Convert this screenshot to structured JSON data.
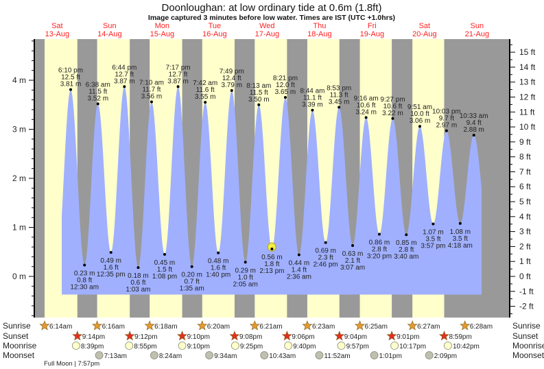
{
  "chart_data": {
    "type": "area",
    "title": "Doonloughan: at low  ordinary tide at 0.6m (1.8ft)",
    "subtitle": "Image captured 3 minutes before low water. Times are IST (UTC +1.0hrs)",
    "days": [
      {
        "dow": "Sat",
        "date": "13-Aug"
      },
      {
        "dow": "Sun",
        "date": "14-Aug"
      },
      {
        "dow": "Mon",
        "date": "15-Aug"
      },
      {
        "dow": "Tue",
        "date": "16-Aug"
      },
      {
        "dow": "Wed",
        "date": "17-Aug"
      },
      {
        "dow": "Thu",
        "date": "18-Aug"
      },
      {
        "dow": "Fri",
        "date": "19-Aug"
      },
      {
        "dow": "Sat",
        "date": "20-Aug"
      },
      {
        "dow": "Sun",
        "date": "21-Aug"
      }
    ],
    "yaxis_left": {
      "unit": "m",
      "ticks": [
        "0 m",
        "1 m",
        "2 m",
        "3 m",
        "4 m"
      ],
      "values": [
        0,
        1,
        2,
        3,
        4
      ]
    },
    "yaxis_right": {
      "unit": "ft",
      "ticks": [
        "-2 ft",
        "-1 ft",
        "0 ft",
        "1 ft",
        "2 ft",
        "3 ft",
        "4 ft",
        "5 ft",
        "6 ft",
        "7 ft",
        "8 ft",
        "9 ft",
        "10 ft",
        "11 ft",
        "12 ft",
        "13 ft",
        "14 ft",
        "15 ft"
      ],
      "values": [
        -2,
        -1,
        0,
        1,
        2,
        3,
        4,
        5,
        6,
        7,
        8,
        9,
        10,
        11,
        12,
        13,
        14,
        15
      ]
    },
    "ylim_m": [
      -0.8,
      4.8
    ],
    "tides": [
      {
        "day": 0,
        "time": "6:10 pm",
        "h": 18.167,
        "m": "3.81 m",
        "ft": "12.5 ft",
        "v": 3.81,
        "type": "high"
      },
      {
        "day": 1,
        "time": "12:30 am",
        "h": 0.5,
        "m": "0.23 m",
        "ft": "0.8 ft",
        "v": 0.23,
        "type": "low"
      },
      {
        "day": 1,
        "time": "6:38 am",
        "h": 6.633,
        "m": "3.52 m",
        "ft": "11.5 ft",
        "v": 3.52,
        "type": "high"
      },
      {
        "day": 1,
        "time": "12:35 pm",
        "h": 12.583,
        "m": "0.49 m",
        "ft": "1.6 ft",
        "v": 0.49,
        "type": "low"
      },
      {
        "day": 1,
        "time": "6:44 pm",
        "h": 18.733,
        "m": "3.87 m",
        "ft": "12.7 ft",
        "v": 3.87,
        "type": "high"
      },
      {
        "day": 2,
        "time": "1:03 am",
        "h": 1.05,
        "m": "0.18 m",
        "ft": "0.6 ft",
        "v": 0.18,
        "type": "low"
      },
      {
        "day": 2,
        "time": "7:10 am",
        "h": 7.167,
        "m": "3.56 m",
        "ft": "11.7 ft",
        "v": 3.56,
        "type": "high"
      },
      {
        "day": 2,
        "time": "1:08 pm",
        "h": 13.133,
        "m": "0.45 m",
        "ft": "1.5 ft",
        "v": 0.45,
        "type": "low"
      },
      {
        "day": 2,
        "time": "7:17 pm",
        "h": 19.283,
        "m": "3.87 m",
        "ft": "12.7 ft",
        "v": 3.87,
        "type": "high"
      },
      {
        "day": 3,
        "time": "1:35 am",
        "h": 1.583,
        "m": "0.20 m",
        "ft": "0.7 ft",
        "v": 0.2,
        "type": "low"
      },
      {
        "day": 3,
        "time": "7:42 am",
        "h": 7.7,
        "m": "3.55 m",
        "ft": "11.6 ft",
        "v": 3.55,
        "type": "high"
      },
      {
        "day": 3,
        "time": "1:40 pm",
        "h": 13.667,
        "m": "0.48 m",
        "ft": "1.6 ft",
        "v": 0.48,
        "type": "low"
      },
      {
        "day": 3,
        "time": "7:49 pm",
        "h": 19.817,
        "m": "3.79 m",
        "ft": "12.4 ft",
        "v": 3.79,
        "type": "high"
      },
      {
        "day": 4,
        "time": "2:05 am",
        "h": 2.083,
        "m": "0.29 m",
        "ft": "1.0 ft",
        "v": 0.29,
        "type": "low"
      },
      {
        "day": 4,
        "time": "8:13 am",
        "h": 8.217,
        "m": "3.50 m",
        "ft": "11.5 ft",
        "v": 3.5,
        "type": "high"
      },
      {
        "day": 4,
        "time": "2:13 pm",
        "h": 14.217,
        "m": "0.56 m",
        "ft": "1.8 ft",
        "v": 0.56,
        "type": "low"
      },
      {
        "day": 4,
        "time": "8:21 pm",
        "h": 20.35,
        "m": "3.65 m",
        "ft": "12.0 ft",
        "v": 3.65,
        "type": "high"
      },
      {
        "day": 5,
        "time": "2:36 am",
        "h": 2.6,
        "m": "0.44 m",
        "ft": "1.4 ft",
        "v": 0.44,
        "type": "low"
      },
      {
        "day": 5,
        "time": "8:44 am",
        "h": 8.733,
        "m": "3.39 m",
        "ft": "11.1 ft",
        "v": 3.39,
        "type": "high"
      },
      {
        "day": 5,
        "time": "2:46 pm",
        "h": 14.767,
        "m": "0.69 m",
        "ft": "2.3 ft",
        "v": 0.69,
        "type": "low"
      },
      {
        "day": 5,
        "time": "8:53 pm",
        "h": 20.883,
        "m": "3.45 m",
        "ft": "11.3 ft",
        "v": 3.45,
        "type": "high"
      },
      {
        "day": 6,
        "time": "3:07 am",
        "h": 3.117,
        "m": "0.63 m",
        "ft": "2.1 ft",
        "v": 0.63,
        "type": "low"
      },
      {
        "day": 6,
        "time": "9:16 am",
        "h": 9.267,
        "m": "3.24 m",
        "ft": "10.6 ft",
        "v": 3.24,
        "type": "high"
      },
      {
        "day": 6,
        "time": "3:20 pm",
        "h": 15.333,
        "m": "0.86 m",
        "ft": "2.8 ft",
        "v": 0.86,
        "type": "low"
      },
      {
        "day": 6,
        "time": "9:27 pm",
        "h": 21.45,
        "m": "3.22 m",
        "ft": "10.6 ft",
        "v": 3.22,
        "type": "high"
      },
      {
        "day": 7,
        "time": "3:40 am",
        "h": 3.667,
        "m": "0.85 m",
        "ft": "2.8 ft",
        "v": 0.85,
        "type": "low"
      },
      {
        "day": 7,
        "time": "9:51 am",
        "h": 9.85,
        "m": "3.06 m",
        "ft": "10.0 ft",
        "v": 3.06,
        "type": "high"
      },
      {
        "day": 7,
        "time": "3:57 pm",
        "h": 15.95,
        "m": "1.07 m",
        "ft": "3.5 ft",
        "v": 1.07,
        "type": "low"
      },
      {
        "day": 7,
        "time": "10:03 pm",
        "h": 22.05,
        "m": "2.97 m",
        "ft": "9.7 ft",
        "v": 2.97,
        "type": "high"
      },
      {
        "day": 8,
        "time": "4:18 am",
        "h": 4.3,
        "m": "1.08 m",
        "ft": "3.5 ft",
        "v": 1.08,
        "type": "low"
      },
      {
        "day": 8,
        "time": "10:33 am",
        "h": 10.55,
        "m": "2.88 m",
        "ft": "9.4 ft",
        "v": 2.88,
        "type": "high"
      }
    ],
    "current": {
      "day": 4,
      "h": 14.167,
      "v": 0.6
    },
    "sunrise": {
      "label": "Sunrise",
      "items": [
        {
          "day": 0,
          "h": 6.233,
          "t": "6:14am"
        },
        {
          "day": 1,
          "h": 6.267,
          "t": "6:16am"
        },
        {
          "day": 2,
          "h": 6.3,
          "t": "6:18am"
        },
        {
          "day": 3,
          "h": 6.333,
          "t": "6:20am"
        },
        {
          "day": 4,
          "h": 6.35,
          "t": "6:21am"
        },
        {
          "day": 5,
          "h": 6.383,
          "t": "6:23am"
        },
        {
          "day": 6,
          "h": 6.417,
          "t": "6:25am"
        },
        {
          "day": 7,
          "h": 6.45,
          "t": "6:27am"
        },
        {
          "day": 8,
          "h": 6.467,
          "t": "6:28am"
        }
      ]
    },
    "sunset": {
      "label": "Sunset",
      "items": [
        {
          "day": 0,
          "h": 21.233,
          "t": "9:14pm"
        },
        {
          "day": 1,
          "h": 21.2,
          "t": "9:12pm"
        },
        {
          "day": 2,
          "h": 21.167,
          "t": "9:10pm"
        },
        {
          "day": 3,
          "h": 21.133,
          "t": "9:08pm"
        },
        {
          "day": 4,
          "h": 21.1,
          "t": "9:06pm"
        },
        {
          "day": 5,
          "h": 21.067,
          "t": "9:04pm"
        },
        {
          "day": 6,
          "h": 21.017,
          "t": "9:01pm"
        },
        {
          "day": 7,
          "h": 20.983,
          "t": "8:59pm"
        }
      ]
    },
    "moonrise": {
      "label": "Moonrise",
      "items": [
        {
          "day": 0,
          "h": 20.65,
          "t": "8:39pm"
        },
        {
          "day": 1,
          "h": 20.917,
          "t": "8:55pm"
        },
        {
          "day": 2,
          "h": 21.167,
          "t": "9:10pm"
        },
        {
          "day": 3,
          "h": 21.417,
          "t": "9:25pm"
        },
        {
          "day": 4,
          "h": 21.667,
          "t": "9:40pm"
        },
        {
          "day": 5,
          "h": 21.95,
          "t": "9:57pm"
        },
        {
          "day": 6,
          "h": 22.283,
          "t": "10:17pm"
        },
        {
          "day": 7,
          "h": 22.7,
          "t": "10:42pm"
        }
      ]
    },
    "moonset": {
      "label": "Moonset",
      "items": [
        {
          "day": 1,
          "h": 7.217,
          "t": "7:13am"
        },
        {
          "day": 2,
          "h": 8.4,
          "t": "8:24am"
        },
        {
          "day": 3,
          "h": 9.567,
          "t": "9:34am"
        },
        {
          "day": 4,
          "h": 10.717,
          "t": "10:43am"
        },
        {
          "day": 5,
          "h": 11.867,
          "t": "11:52am"
        },
        {
          "day": 6,
          "h": 13.017,
          "t": "1:01pm"
        },
        {
          "day": 7,
          "h": 14.15,
          "t": "2:09pm"
        }
      ]
    },
    "moon_phase": "Full Moon | 7:57pm",
    "colors": {
      "day": "#ffffcc",
      "night": "#999999",
      "water": "#a0b0ff",
      "daylabel": "#ff2020",
      "sunrise": "#e59a30",
      "sunset": "#e03020",
      "moonrise": "#ffffcc",
      "moonset": "#c0c0b0"
    }
  }
}
